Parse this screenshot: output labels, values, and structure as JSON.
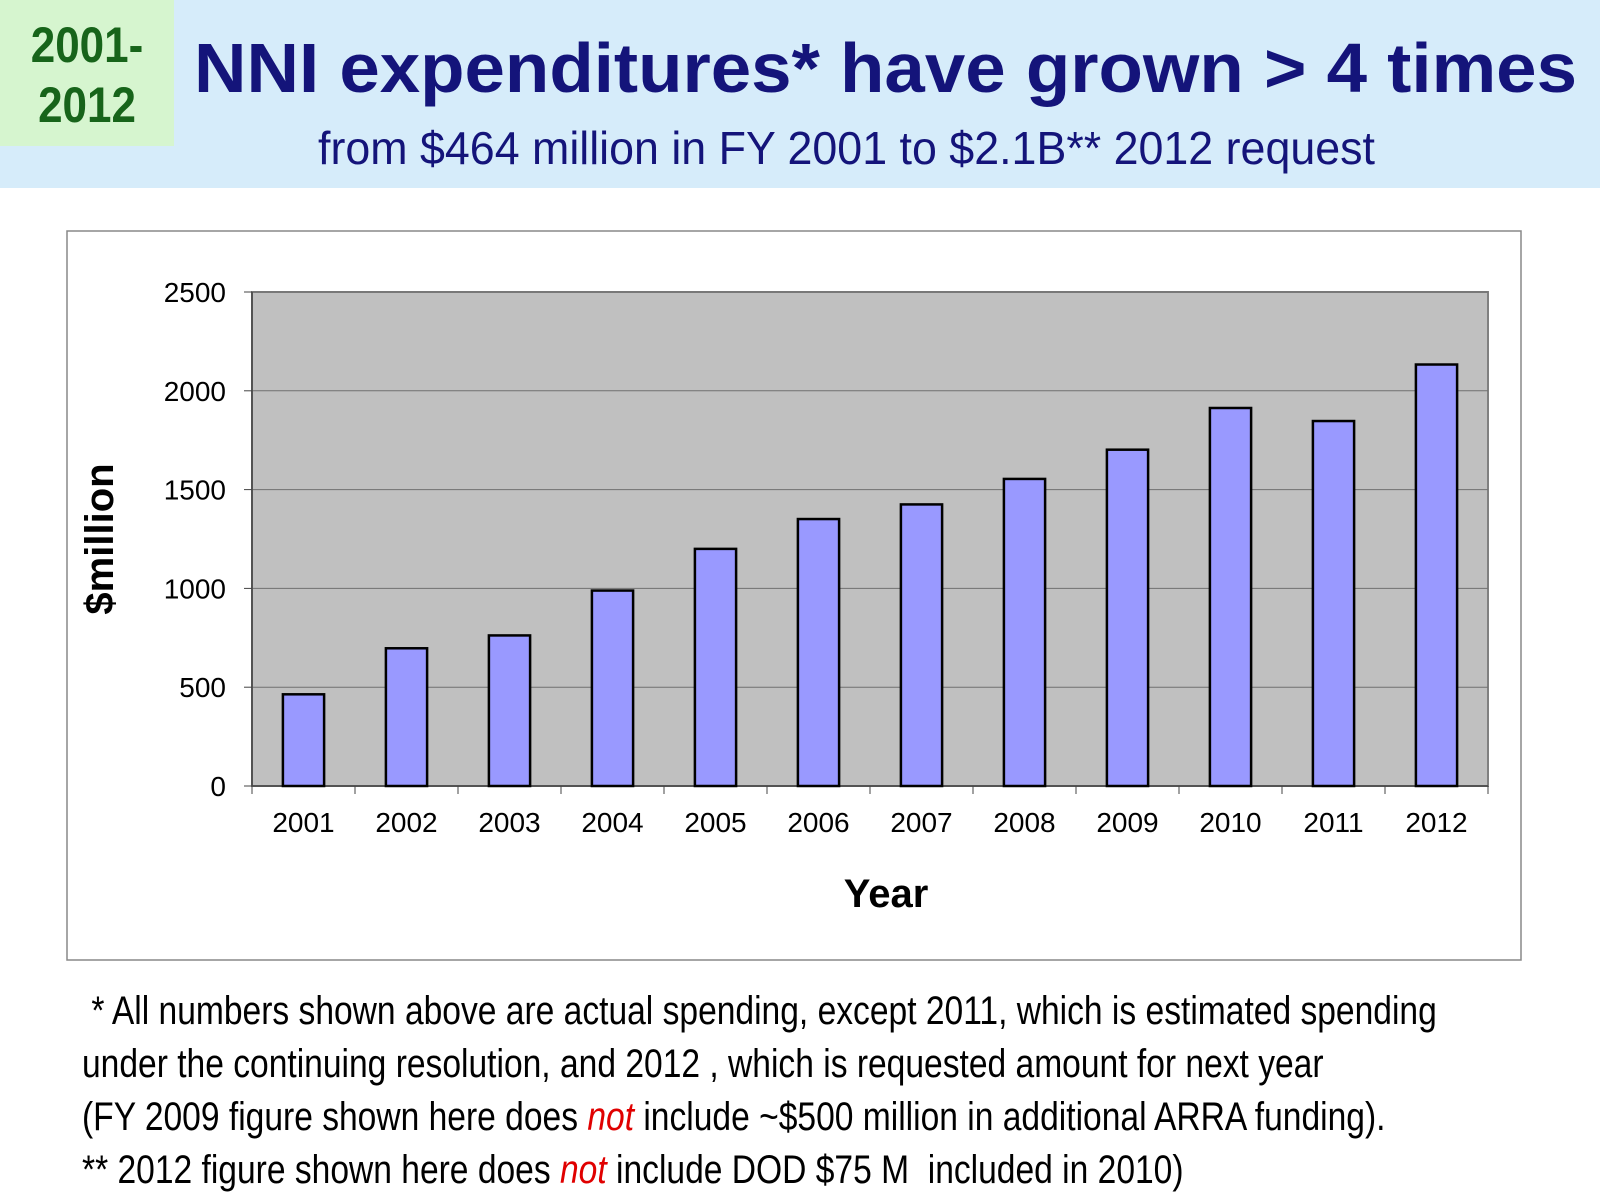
{
  "header": {
    "badge": [
      "2001-",
      "2012"
    ],
    "title": "NNI expenditures* have grown > 4 times",
    "subtitle": "from $464 million in FY 2001 to $2.1B** 2012 request"
  },
  "chart_data": {
    "type": "bar",
    "x_label": "Year",
    "y_label": "$million",
    "categories": [
      "2001",
      "2002",
      "2003",
      "2004",
      "2005",
      "2006",
      "2007",
      "2008",
      "2009",
      "2010",
      "2011",
      "2012"
    ],
    "values": [
      464,
      697,
      762,
      989,
      1200,
      1351,
      1425,
      1554,
      1702,
      1913,
      1847,
      2133
    ],
    "color": "#9999ff",
    "ylim": [
      0,
      2500
    ],
    "yticks": [
      0,
      500,
      1000,
      1500,
      2000,
      2500
    ],
    "grid": true
  },
  "footnotes": [
    [
      " * All numbers shown above are actual spending, except 2011, which is estimated spending"
    ],
    [
      "under the continuing resolution, and 2012 , which is requested amount for next year"
    ],
    [
      "(FY 2009 figure shown here does ",
      "not",
      " include ~$500 million in additional ARRA funding)."
    ],
    [
      "** 2012 figure shown here does ",
      "not",
      " include DOD $75 M  included in 2010)"
    ]
  ],
  "emphasis_color": "#e00000"
}
